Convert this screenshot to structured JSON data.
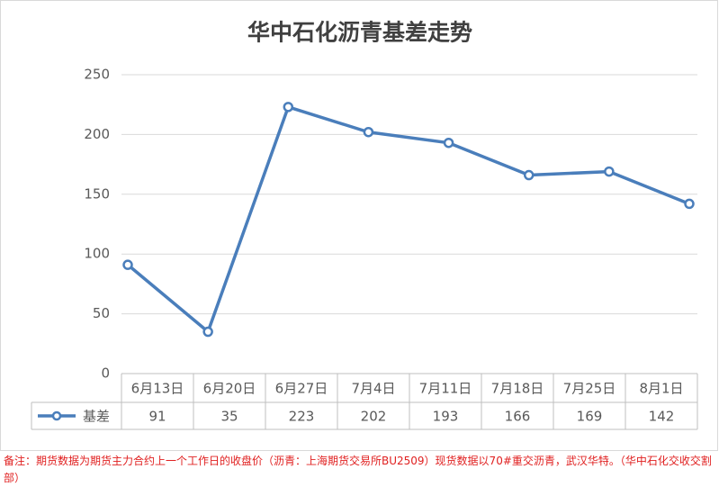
{
  "chart_data": {
    "type": "line",
    "title": "华中石化沥青基差走势",
    "categories": [
      "6月13日",
      "6月20日",
      "6月27日",
      "7月4日",
      "7月11日",
      "7月18日",
      "7月25日",
      "8月1日"
    ],
    "series": [
      {
        "name": "基差",
        "color": "#4a7ebb",
        "values": [
          91,
          35,
          223,
          202,
          193,
          166,
          169,
          142
        ]
      }
    ],
    "ylim": [
      0,
      250
    ],
    "yticks": [
      0,
      50,
      100,
      150,
      200,
      250
    ],
    "grid": true,
    "note": "备注：期货数据为期货主力合约上一个工作日的收盘价（沥青：上海期货交易所BU2509）现货数据以70#重交沥青，武汉华特。（华中石化交收交割部）"
  }
}
